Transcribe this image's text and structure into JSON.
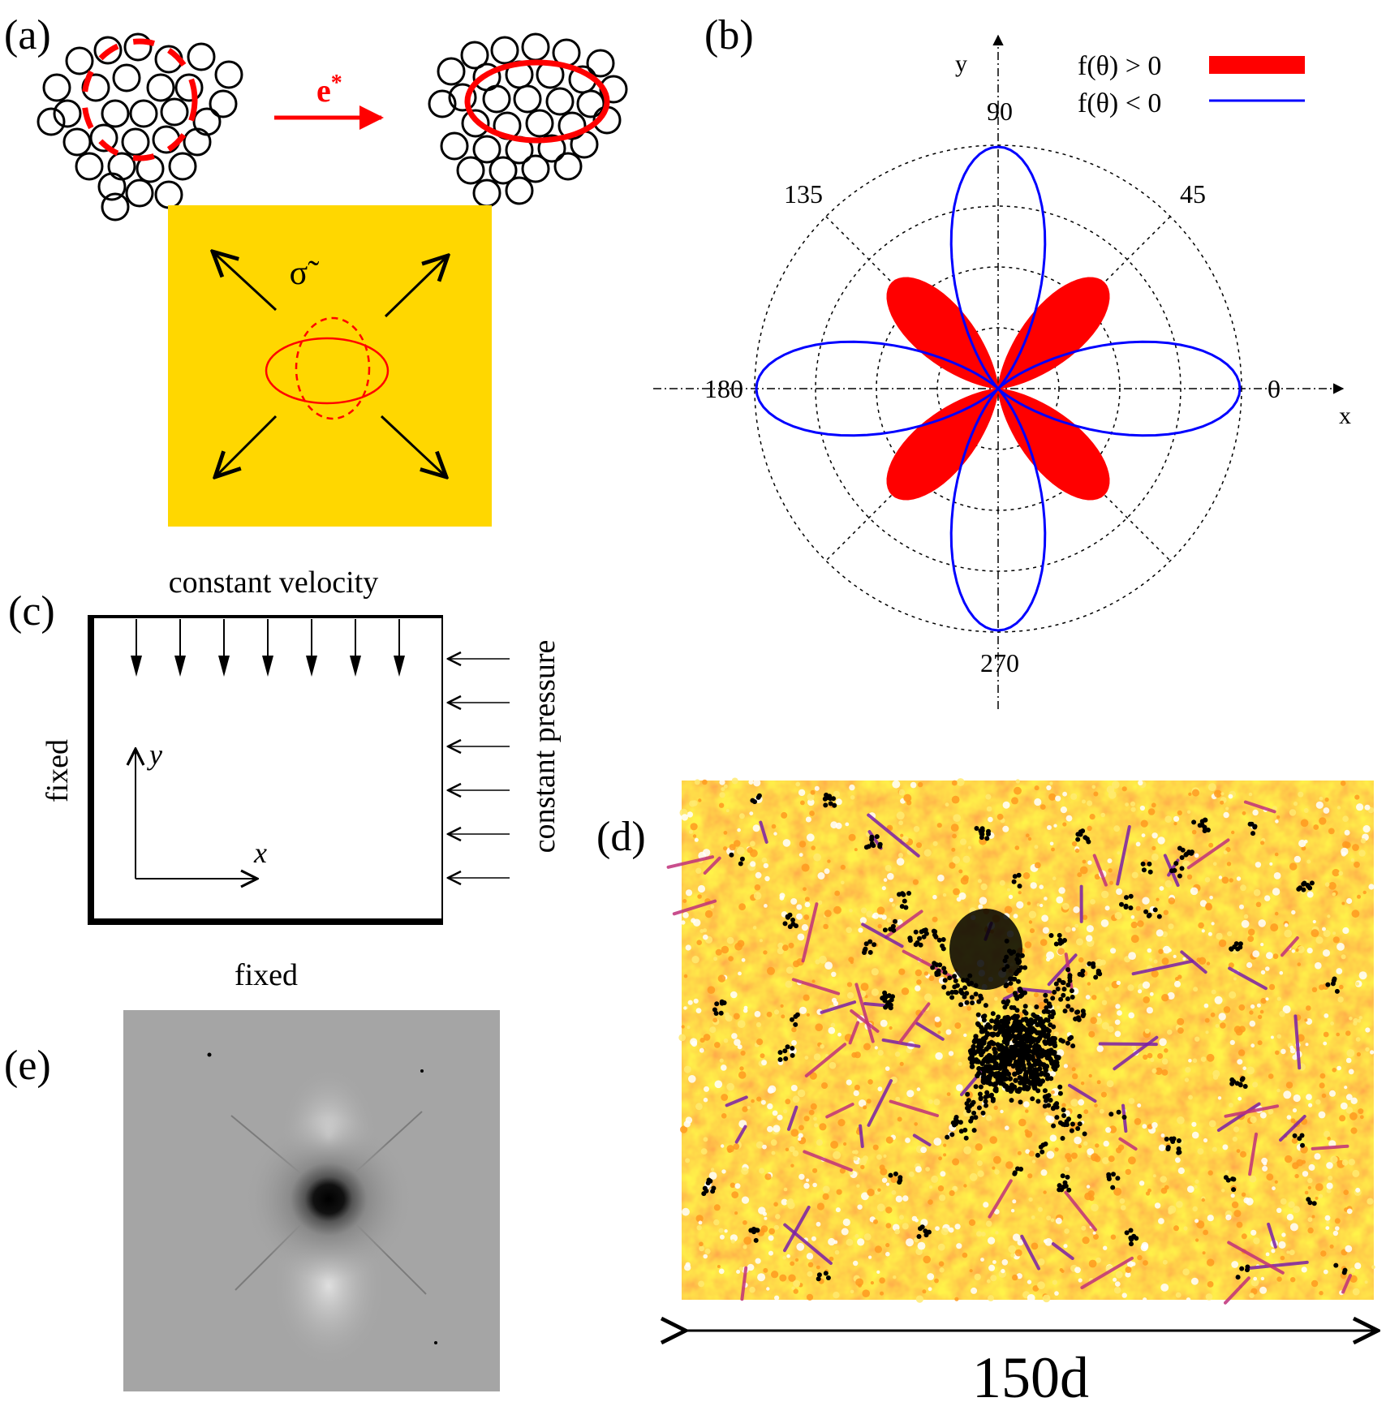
{
  "panel_a": {
    "label": "(a)",
    "arrow_label": "e",
    "arrow_label_sup": "*",
    "stress_label": "σ̃"
  },
  "panel_b": {
    "label": "(b)",
    "axis_x": "x",
    "axis_y": "y",
    "angle_labels": [
      "0",
      "45",
      "90",
      "135",
      "180",
      "270"
    ],
    "legend": [
      {
        "label": "f(θ) > 0",
        "color": "#ff0000",
        "style": "filled"
      },
      {
        "label": "f(θ) < 0",
        "color": "#0000ff",
        "style": "line"
      }
    ]
  },
  "panel_c": {
    "label": "(c)",
    "top_label": "constant velocity",
    "right_label": "constant pressure",
    "left_label": "fixed",
    "bottom_label": "fixed",
    "axis_x": "x",
    "axis_y": "y"
  },
  "panel_d": {
    "label": "(d)",
    "scale_label": "150d"
  },
  "panel_e": {
    "label": "(e)"
  },
  "colors": {
    "red": "#ff0000",
    "blue": "#0000ff",
    "gold": "#ffd700",
    "black": "#000000"
  }
}
